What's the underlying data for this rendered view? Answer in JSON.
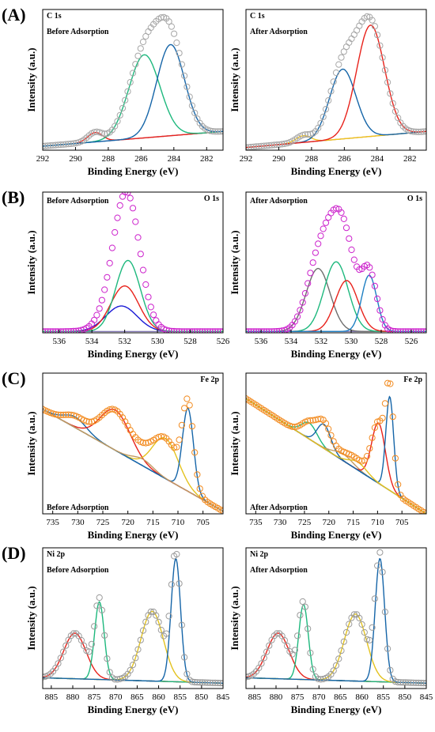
{
  "figure": {
    "rows": [
      {
        "letter": "(A)"
      },
      {
        "letter": "(B)"
      },
      {
        "letter": "(C)"
      },
      {
        "letter": "(D)"
      }
    ]
  },
  "chart_data": [
    {
      "type": "line",
      "row": 0,
      "col": 0,
      "element": "C 1s",
      "condition": "Before Adsorption",
      "xlabel": "Binding Energy (eV)",
      "ylabel": "Intensity (a.u.)",
      "xlim": [
        292,
        281
      ],
      "ylim": [
        0,
        1.05
      ],
      "xticks": [
        292,
        290,
        288,
        286,
        284,
        282
      ],
      "background": [
        [
          292,
          0.03
        ],
        [
          281,
          0.14
        ]
      ],
      "peaks": [
        {
          "center": 288.8,
          "height": 0.07,
          "width": 0.45,
          "color": "#e8221b"
        },
        {
          "center": 285.8,
          "height": 0.62,
          "width": 0.95,
          "color": "#1db87d"
        },
        {
          "center": 284.2,
          "height": 0.68,
          "width": 0.85,
          "color": "#1565a8"
        }
      ],
      "envelope_style": "open-circle",
      "envelope_color": "#a6a6a6"
    },
    {
      "type": "line",
      "row": 0,
      "col": 1,
      "element": "C 1s",
      "condition": "After Adsorption",
      "xlabel": "Binding Energy (eV)",
      "ylabel": "Intensity (a.u.)",
      "xlim": [
        292,
        281
      ],
      "ylim": [
        0,
        1.05
      ],
      "xticks": [
        292,
        290,
        288,
        286,
        284,
        282
      ],
      "background": [
        [
          292,
          0.02
        ],
        [
          281,
          0.14
        ]
      ],
      "peaks": [
        {
          "center": 288.5,
          "height": 0.05,
          "width": 0.45,
          "color": "#f3c31a"
        },
        {
          "center": 286.1,
          "height": 0.52,
          "width": 0.8,
          "color": "#1565a8"
        },
        {
          "center": 284.4,
          "height": 0.83,
          "width": 0.85,
          "color": "#e8221b"
        }
      ],
      "envelope_style": "open-circle",
      "envelope_color": "#a6a6a6"
    },
    {
      "type": "line",
      "row": 1,
      "col": 0,
      "element": "O 1s",
      "condition": "Before Adsorption",
      "xlabel": "Binding Energy (eV)",
      "ylabel": "Intensity (a.u.)",
      "xlim": [
        537,
        526
      ],
      "ylim": [
        0,
        1.05
      ],
      "xticks": [
        536,
        534,
        532,
        530,
        528,
        526
      ],
      "background": [
        [
          537,
          0.01
        ],
        [
          526,
          0.01
        ]
      ],
      "peaks": [
        {
          "center": 532.2,
          "height": 0.19,
          "width": 0.95,
          "color": "#1b1bd6"
        },
        {
          "center": 532.0,
          "height": 0.34,
          "width": 0.85,
          "color": "#e8221b"
        },
        {
          "center": 531.8,
          "height": 0.53,
          "width": 0.75,
          "color": "#1db87d"
        }
      ],
      "envelope_style": "open-circle",
      "envelope_color": "#cc22cc"
    },
    {
      "type": "line",
      "row": 1,
      "col": 1,
      "element": "O 1s",
      "condition": "After Adsorption",
      "xlabel": "Binding Energy (eV)",
      "ylabel": "Intensity (a.u.)",
      "xlim": [
        537,
        525
      ],
      "ylim": [
        0,
        1.05
      ],
      "xticks": [
        536,
        534,
        532,
        530,
        528,
        526
      ],
      "background": [
        [
          537,
          0.01
        ],
        [
          525,
          0.01
        ]
      ],
      "peaks": [
        {
          "center": 532.2,
          "height": 0.47,
          "width": 0.8,
          "color": "#6e6e6e"
        },
        {
          "center": 531.0,
          "height": 0.52,
          "width": 0.8,
          "color": "#1db87d"
        },
        {
          "center": 530.3,
          "height": 0.38,
          "width": 0.75,
          "color": "#e8221b"
        },
        {
          "center": 528.8,
          "height": 0.42,
          "width": 0.5,
          "color": "#1e7fc2"
        }
      ],
      "envelope_style": "open-circle",
      "envelope_color": "#cc22cc"
    },
    {
      "type": "line",
      "row": 2,
      "col": 0,
      "element": "Fe 2p",
      "condition": "Before Adsorption",
      "xlabel": "Binding Energy (eV)",
      "ylabel": "Intensity (a.u.)",
      "xlim": [
        737,
        701
      ],
      "ylim": [
        0,
        1.05
      ],
      "xticks": [
        735,
        730,
        725,
        720,
        715,
        710,
        705
      ],
      "background": [
        [
          737,
          0.78
        ],
        [
          701,
          0.02
        ]
      ],
      "peaks": [
        {
          "center": 730.5,
          "height": 0.08,
          "width": 2.2,
          "color": "#1565a8"
        },
        {
          "center": 722.5,
          "height": 0.3,
          "width": 3.0,
          "color": "#e8221b"
        },
        {
          "center": 712.5,
          "height": 0.3,
          "width": 2.6,
          "color": "#e3c21e"
        },
        {
          "center": 708.0,
          "height": 0.62,
          "width": 1.1,
          "color": "#1565a8"
        },
        {
          "center": 717.0,
          "height": 0.05,
          "width": 2.0,
          "color": "#c39a62"
        }
      ],
      "envelope_style": "open-circle",
      "envelope_color": "#f28a1e"
    },
    {
      "type": "line",
      "row": 2,
      "col": 1,
      "element": "Fe 2p",
      "condition": "After Adsorption",
      "xlabel": "Binding Energy (eV)",
      "ylabel": "Intensity (a.u.)",
      "xlim": [
        737,
        700
      ],
      "ylim": [
        0,
        1.05
      ],
      "xticks": [
        735,
        730,
        725,
        720,
        715,
        710,
        705
      ],
      "background": [
        [
          737,
          0.86
        ],
        [
          700,
          0.0
        ]
      ],
      "peaks": [
        {
          "center": 724.0,
          "height": 0.12,
          "width": 1.6,
          "color": "#1db87d"
        },
        {
          "center": 721.0,
          "height": 0.18,
          "width": 1.4,
          "color": "#1565a8"
        },
        {
          "center": 717.0,
          "height": 0.05,
          "width": 2.0,
          "color": "#c39a62"
        },
        {
          "center": 709.8,
          "height": 0.45,
          "width": 1.4,
          "color": "#e8221b"
        },
        {
          "center": 707.5,
          "height": 0.7,
          "width": 0.8,
          "color": "#1565a8"
        },
        {
          "center": 714.0,
          "height": 0.06,
          "width": 1.8,
          "color": "#e3c21e"
        }
      ],
      "envelope_style": "open-circle",
      "envelope_color": "#f28a1e"
    },
    {
      "type": "line",
      "row": 3,
      "col": 0,
      "element": "Ni 2p",
      "condition": "Before Adsorption",
      "xlabel": "Binding Energy (eV)",
      "ylabel": "Intensity (a.u.)",
      "xlim": [
        887,
        845
      ],
      "ylim": [
        0,
        1.05
      ],
      "xticks": [
        885,
        880,
        875,
        870,
        865,
        860,
        855,
        850,
        845
      ],
      "background": [
        [
          887,
          0.08
        ],
        [
          845,
          0.04
        ]
      ],
      "peaks": [
        {
          "center": 879.5,
          "height": 0.34,
          "width": 2.6,
          "color": "#e8221b"
        },
        {
          "center": 873.8,
          "height": 0.58,
          "width": 1.1,
          "color": "#1db87d"
        },
        {
          "center": 861.5,
          "height": 0.52,
          "width": 2.6,
          "color": "#e3c21e"
        },
        {
          "center": 856.0,
          "height": 0.92,
          "width": 1.1,
          "color": "#1565a8"
        }
      ],
      "envelope_style": "open-circle",
      "envelope_color": "#9a9a9a"
    },
    {
      "type": "line",
      "row": 3,
      "col": 1,
      "element": "Ni 2p",
      "condition": "After Adsorption",
      "xlabel": "Binding Energy (eV)",
      "ylabel": "Intensity (a.u.)",
      "xlim": [
        887,
        845
      ],
      "ylim": [
        0,
        1.05
      ],
      "xticks": [
        885,
        880,
        875,
        870,
        865,
        860,
        855,
        850,
        845
      ],
      "background": [
        [
          887,
          0.08
        ],
        [
          845,
          0.04
        ]
      ],
      "peaks": [
        {
          "center": 879.5,
          "height": 0.34,
          "width": 2.6,
          "color": "#e8221b"
        },
        {
          "center": 873.6,
          "height": 0.56,
          "width": 1.1,
          "color": "#1db87d"
        },
        {
          "center": 861.5,
          "height": 0.5,
          "width": 2.6,
          "color": "#e3c21e"
        },
        {
          "center": 855.8,
          "height": 0.92,
          "width": 1.1,
          "color": "#1565a8"
        }
      ],
      "envelope_style": "open-circle",
      "envelope_color": "#9a9a9a"
    }
  ]
}
